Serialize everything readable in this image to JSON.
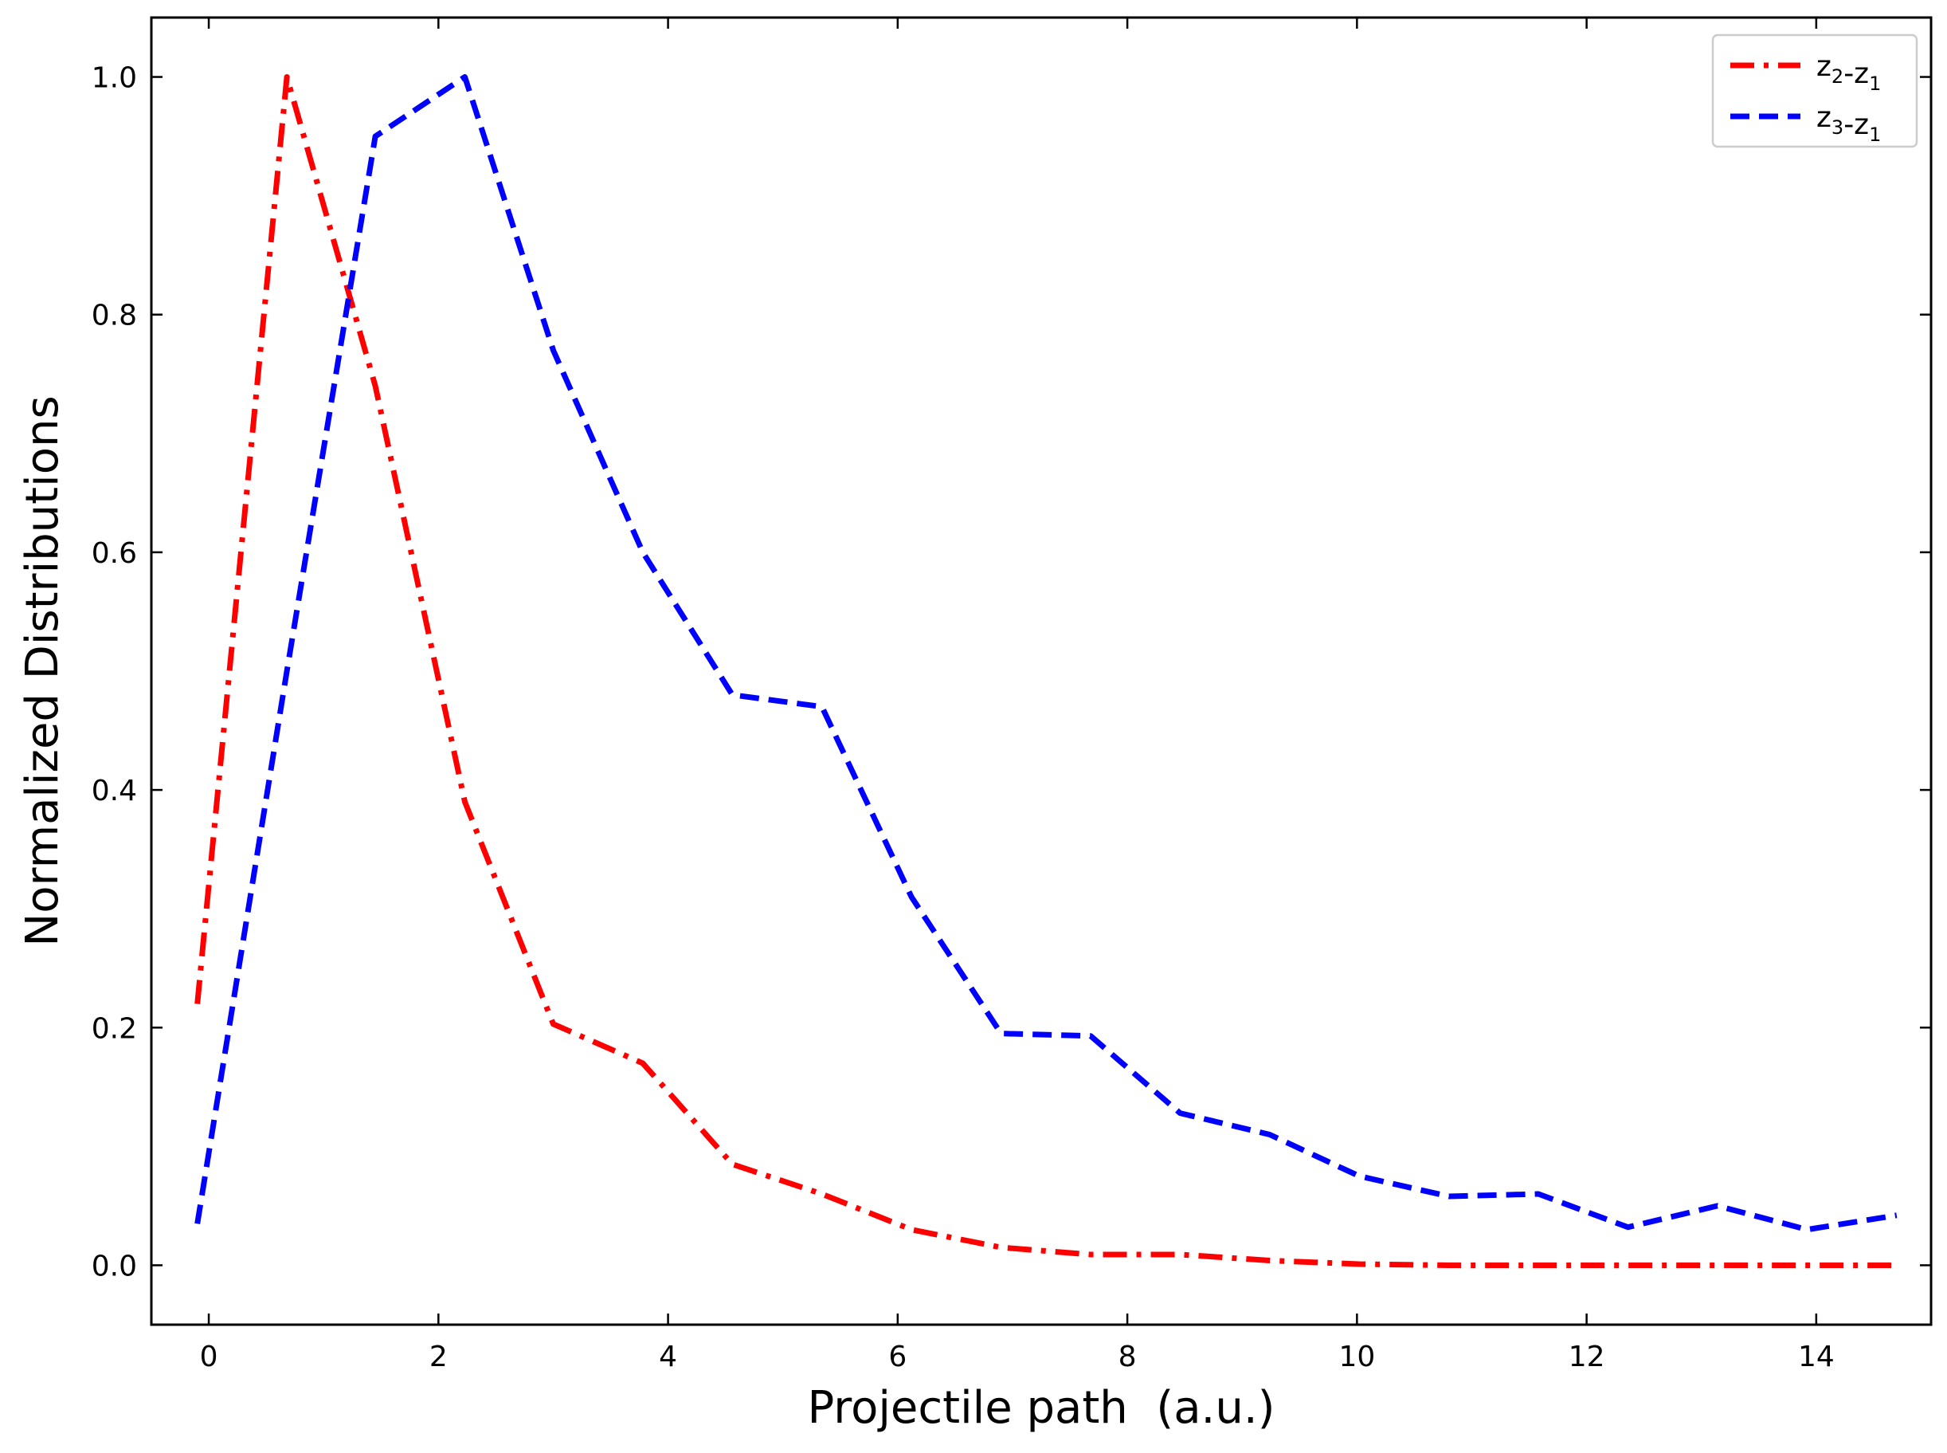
{
  "chart_data": {
    "type": "line",
    "xlabel": "Projectile path  (a.u.)",
    "ylabel": "Normalized Distributions",
    "xlim": [
      -0.5,
      15.0
    ],
    "ylim": [
      -0.05,
      1.05
    ],
    "xticks": [
      0,
      2,
      4,
      6,
      8,
      10,
      12,
      14
    ],
    "xtick_labels": [
      "0",
      "2",
      "4",
      "6",
      "8",
      "10",
      "12",
      "14"
    ],
    "yticks": [
      0.0,
      0.2,
      0.4,
      0.6,
      0.8,
      1.0
    ],
    "ytick_labels": [
      "0.0",
      "0.2",
      "0.4",
      "0.6",
      "0.8",
      "1.0"
    ],
    "grid": false,
    "legend_position": "top-right",
    "series": [
      {
        "name": "z2-z1",
        "legend_main": [
          "z",
          "-z"
        ],
        "legend_subs": [
          "2",
          "1"
        ],
        "color": "#ff0000",
        "style": "dashdot",
        "x": [
          -0.1,
          0.68,
          1.45,
          2.23,
          3.0,
          3.78,
          4.56,
          5.34,
          6.12,
          6.9,
          7.68,
          8.46,
          9.24,
          10.02,
          10.8,
          11.58,
          12.36,
          13.14,
          13.92,
          14.7
        ],
        "y": [
          0.22,
          1.0,
          0.74,
          0.39,
          0.203,
          0.17,
          0.085,
          0.06,
          0.03,
          0.015,
          0.009,
          0.009,
          0.004,
          0.001,
          0.0,
          0.0,
          0.0,
          0.0,
          0.0,
          0.0
        ]
      },
      {
        "name": "z3-z1",
        "legend_main": [
          "z",
          "-z"
        ],
        "legend_subs": [
          "3",
          "1"
        ],
        "color": "#0000ff",
        "style": "dashed",
        "x": [
          -0.1,
          0.68,
          1.45,
          2.23,
          3.0,
          3.78,
          4.56,
          5.34,
          6.12,
          6.9,
          7.68,
          8.46,
          9.24,
          10.02,
          10.8,
          11.58,
          12.36,
          13.14,
          13.92,
          14.7
        ],
        "y": [
          0.035,
          0.5,
          0.95,
          1.0,
          0.77,
          0.6,
          0.48,
          0.47,
          0.31,
          0.195,
          0.193,
          0.128,
          0.11,
          0.075,
          0.058,
          0.06,
          0.032,
          0.05,
          0.03,
          0.042
        ]
      }
    ]
  }
}
